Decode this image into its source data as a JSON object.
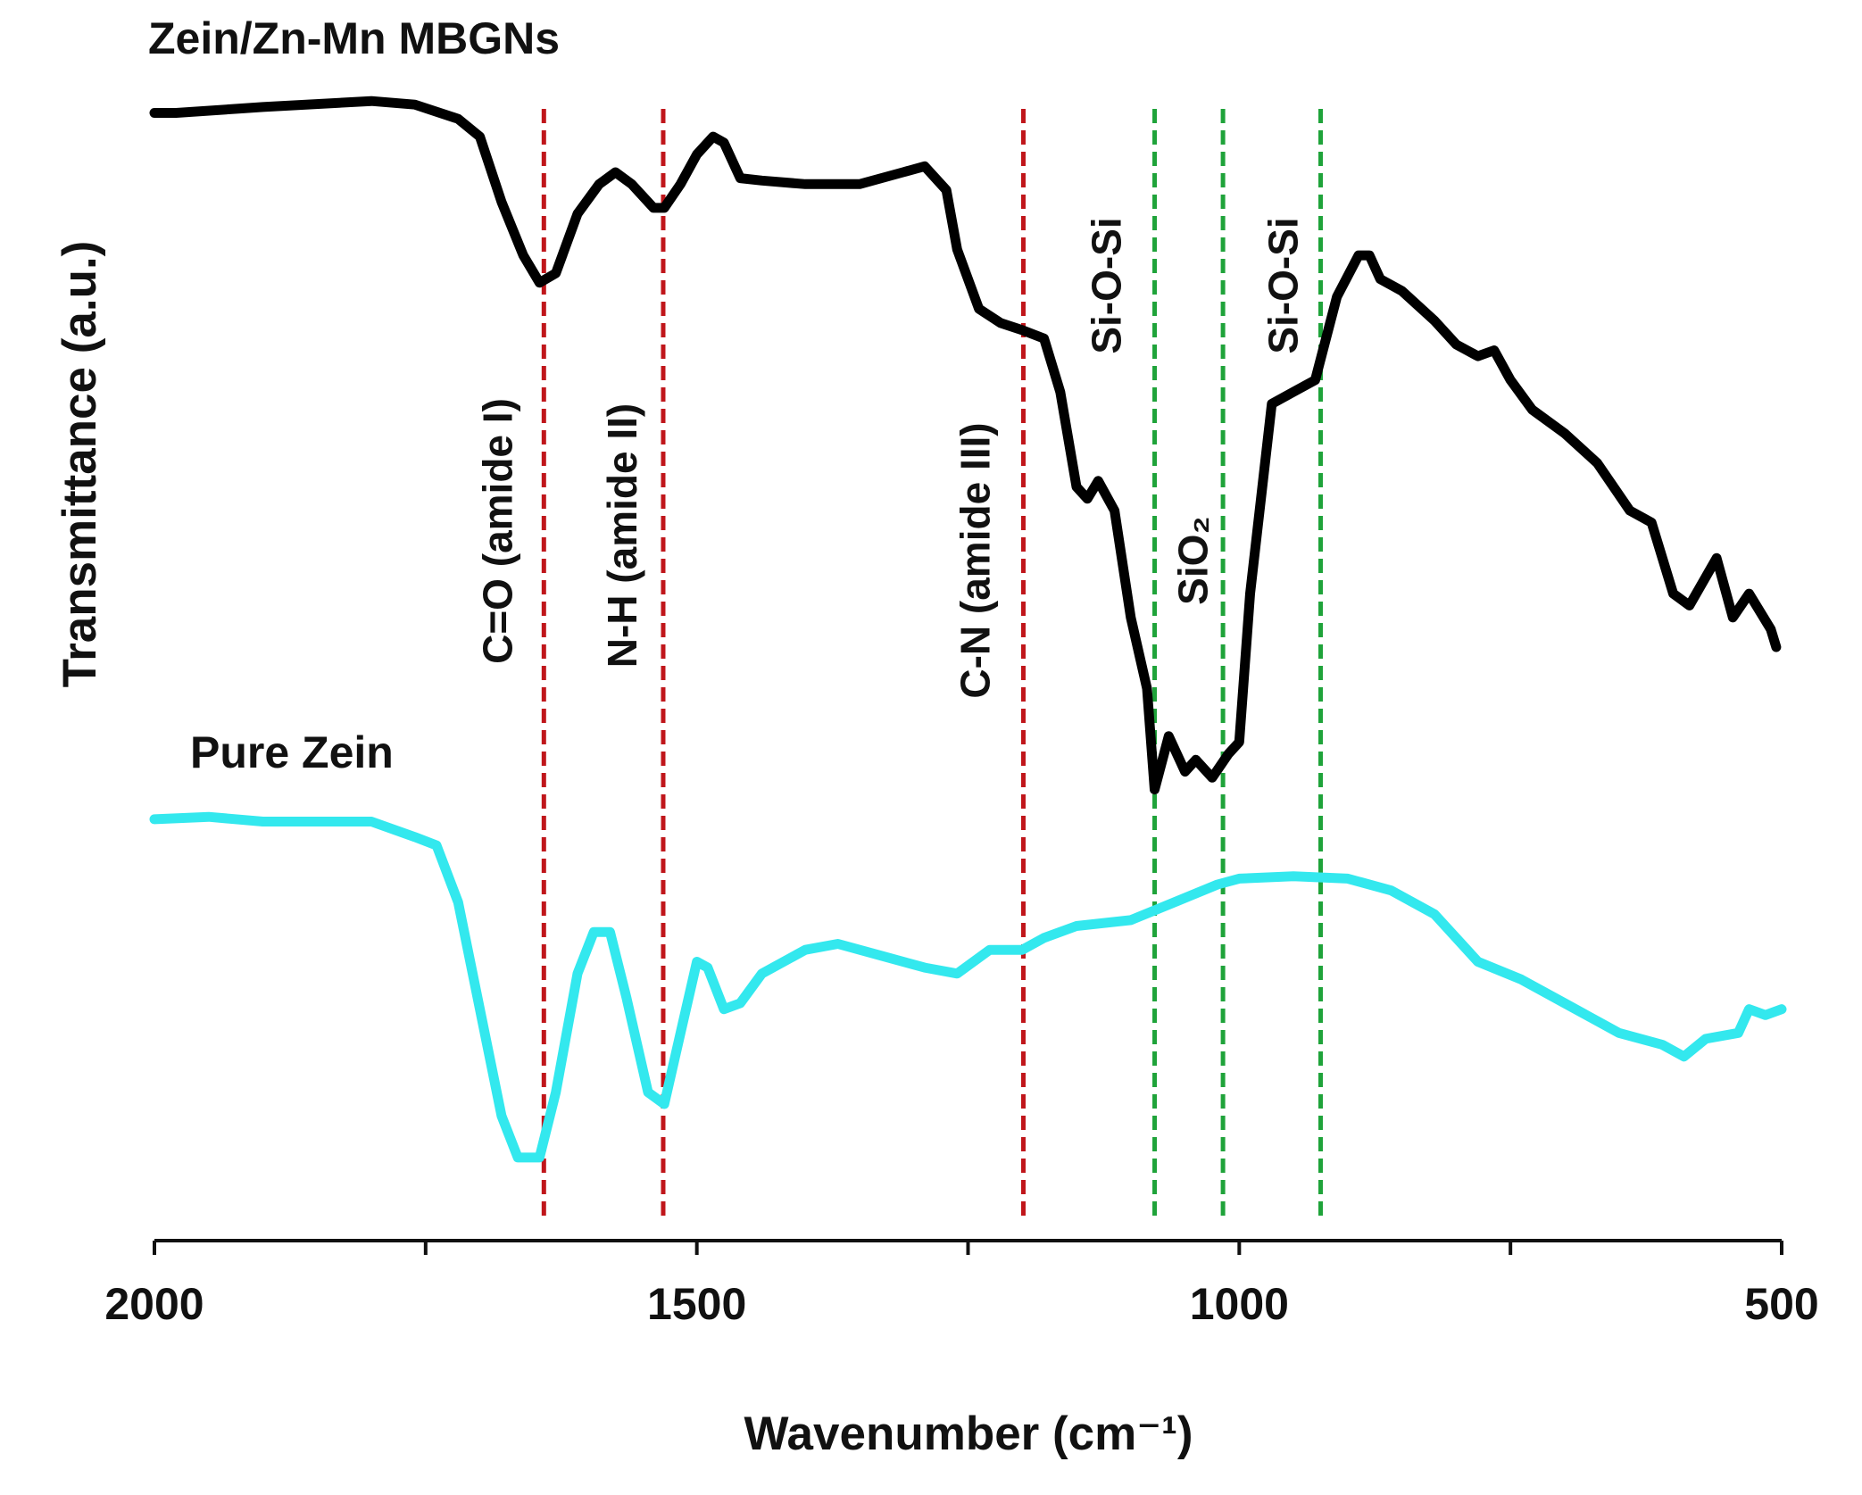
{
  "chart_data": {
    "type": "line",
    "xlabel": "Wavenumber (cm⁻¹)",
    "ylabel": "Transmittance (a.u.)",
    "xlim": [
      2000,
      500
    ],
    "ylim": [
      0,
      100
    ],
    "xticks": [
      2000,
      1500,
      1000,
      500
    ],
    "xminor_ticks": [
      1750,
      1250,
      750
    ],
    "series": [
      {
        "name": "Zein/Zn-Mn MBGNs",
        "color": "#000000",
        "x": [
          2000,
          1980,
          1900,
          1800,
          1760,
          1720,
          1700,
          1680,
          1660,
          1645,
          1630,
          1610,
          1590,
          1575,
          1560,
          1540,
          1530,
          1515,
          1500,
          1485,
          1475,
          1460,
          1440,
          1400,
          1350,
          1310,
          1290,
          1270,
          1260,
          1240,
          1220,
          1200,
          1180,
          1165,
          1150,
          1140,
          1130,
          1115,
          1100,
          1085,
          1078,
          1065,
          1050,
          1040,
          1025,
          1010,
          1000,
          990,
          970,
          950,
          930,
          910,
          890,
          880,
          870,
          850,
          820,
          800,
          780,
          765,
          750,
          730,
          700,
          670,
          640,
          620,
          600,
          585,
          560,
          545,
          530,
          510,
          505
        ],
        "values": [
          95.0,
          95.0,
          95.5,
          96.0,
          95.7,
          94.5,
          93.0,
          87.5,
          83.0,
          80.7,
          81.5,
          86.5,
          89.0,
          90.0,
          89.0,
          87.0,
          87.0,
          89.0,
          91.5,
          93.0,
          92.5,
          89.5,
          89.3,
          89.0,
          89.0,
          90.0,
          90.5,
          88.5,
          83.5,
          78.5,
          77.3,
          76.7,
          76.0,
          71.5,
          63.5,
          62.5,
          64.0,
          61.5,
          52.5,
          46.5,
          38.0,
          42.5,
          39.5,
          40.5,
          39.0,
          41.0,
          42.0,
          54.5,
          70.5,
          71.5,
          72.5,
          79.5,
          83.0,
          83.0,
          81.0,
          80.0,
          77.5,
          75.5,
          74.5,
          75.0,
          72.5,
          70.0,
          68.0,
          65.5,
          61.5,
          60.5,
          54.5,
          53.5,
          57.5,
          52.5,
          54.5,
          51.5,
          50.0
        ]
      },
      {
        "name": "Pure Zein",
        "color": "#33e8ee",
        "x": [
          2000,
          1950,
          1900,
          1800,
          1760,
          1740,
          1720,
          1700,
          1680,
          1665,
          1645,
          1630,
          1610,
          1595,
          1580,
          1565,
          1545,
          1530,
          1515,
          1500,
          1490,
          1475,
          1460,
          1440,
          1400,
          1370,
          1330,
          1290,
          1260,
          1230,
          1200,
          1180,
          1150,
          1100,
          1060,
          1020,
          1000,
          950,
          900,
          860,
          820,
          780,
          740,
          700,
          650,
          610,
          590,
          570,
          540,
          530,
          515,
          500
        ],
        "values": [
          35.5,
          35.7,
          35.3,
          35.3,
          34.0,
          33.3,
          28.5,
          19.5,
          10.5,
          7.0,
          7.0,
          12.5,
          22.5,
          26.0,
          26.0,
          20.5,
          12.5,
          11.5,
          17.5,
          23.5,
          23.0,
          19.5,
          20.0,
          22.5,
          24.5,
          25.0,
          24.0,
          23.0,
          22.5,
          24.5,
          24.5,
          25.5,
          26.5,
          27.0,
          28.5,
          30.0,
          30.5,
          30.7,
          30.5,
          29.5,
          27.5,
          23.5,
          22.0,
          20.0,
          17.5,
          16.5,
          15.5,
          17.0,
          17.5,
          19.5,
          19.0,
          19.5
        ]
      }
    ],
    "reference_lines": [
      {
        "x": 1641,
        "color": "#c0161b",
        "label": "C=O (amide I)"
      },
      {
        "x": 1531,
        "color": "#c0161b",
        "label": "N-H (amide II)"
      },
      {
        "x": 1199,
        "color": "#c0161b",
        "label": "C-N (amide III)"
      },
      {
        "x": 1078,
        "color": "#1fa33a",
        "label": "Si-O-Si"
      },
      {
        "x": 1015,
        "color": "#1fa33a",
        "label": "SiO₂"
      },
      {
        "x": 925,
        "color": "#1fa33a",
        "label": "Si-O-Si"
      }
    ]
  }
}
